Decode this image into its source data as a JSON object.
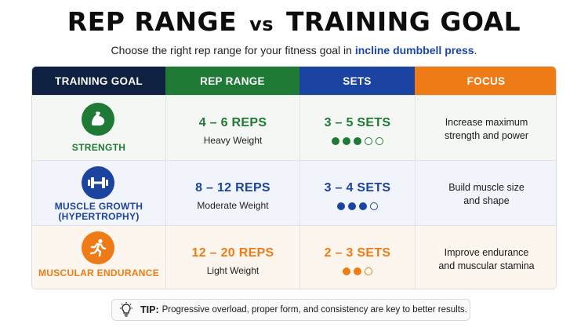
{
  "title": {
    "part1": "REP RANGE",
    "vs": "vs",
    "part2": "TRAINING GOAL"
  },
  "subtitle": {
    "text": "Choose the right rep range for your fitness goal in",
    "highlight": "incline dumbbell press",
    "end": "."
  },
  "headers": [
    "TRAINING GOAL",
    "REP RANGE",
    "SETS",
    "FOCUS"
  ],
  "colors": {
    "goal_header": "#0f2140",
    "rep_header": "#1e7a34",
    "sets_header": "#1a44a0",
    "focus_header": "#ee7b16",
    "strength": "#1e7a34",
    "hypertrophy": "#1a44a0",
    "endurance": "#ee7b16"
  },
  "rows": [
    {
      "goal": "STRENGTH",
      "icon": "flexed-arm-icon",
      "reps": "4 – 6 REPS",
      "weight": "Heavy Weight",
      "sets": "3 – 5 SETS",
      "sets_filled": 3,
      "sets_total": 5,
      "focus_line1": "Increase maximum",
      "focus_line2": "strength and power"
    },
    {
      "goal_line1": "MUSCLE GROWTH",
      "goal_line2": "(HYPERTROPHY)",
      "icon": "dumbbell-icon",
      "reps": "8 – 12 REPS",
      "weight": "Moderate Weight",
      "sets": "3 – 4 SETS",
      "sets_filled": 3,
      "sets_total": 4,
      "focus_line1": "Build muscle size",
      "focus_line2": "and shape"
    },
    {
      "goal": "MUSCULAR ENDURANCE",
      "icon": "running-person-icon",
      "reps": "12 – 20 REPS",
      "weight": "Light Weight",
      "sets": "2 – 3 SETS",
      "sets_filled": 2,
      "sets_total": 3,
      "focus_line1": "Improve endurance",
      "focus_line2": "and muscular stamina"
    }
  ],
  "tip": {
    "label": "TIP:",
    "text": "Progressive overload, proper form, and consistency are key to better results."
  }
}
